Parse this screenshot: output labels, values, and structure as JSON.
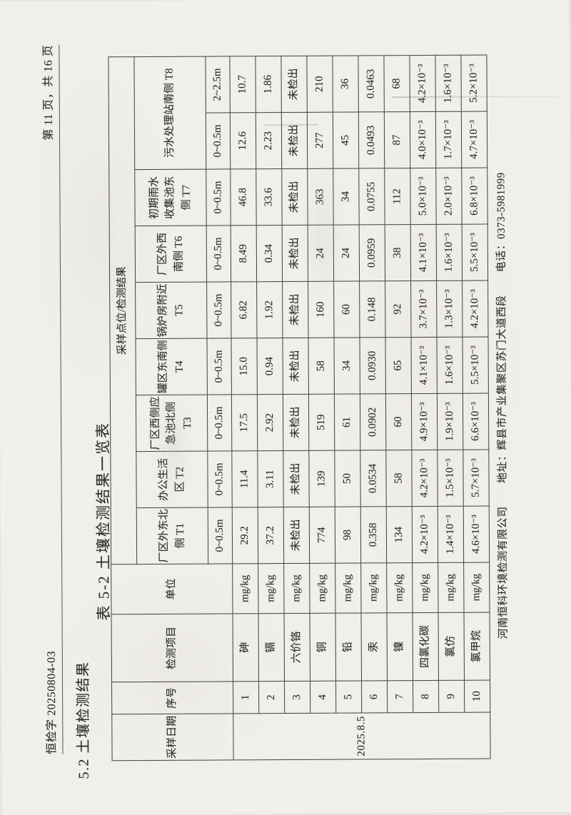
{
  "colors": {
    "paper": "#f1efea",
    "ink": "#2e2d2b",
    "line": "#41403d"
  },
  "page_header": {
    "left": "恒检字 20250804-03",
    "right": "第 11 页，共 16 页"
  },
  "section_heading": "5.2 土壤检测结果",
  "table_title": "表 5-2  土壤检测结果一览表",
  "table": {
    "left_headers": [
      "采样日期",
      "序号",
      "检测项目",
      "单位"
    ],
    "span_header": "采样点位/检测结果",
    "points": [
      {
        "label": "厂区外东北\n侧 T1",
        "cols": 1,
        "depths": [
          "0~0.5m"
        ]
      },
      {
        "label": "办公生活\n区 T2",
        "cols": 1,
        "depths": [
          "0~0.5m"
        ]
      },
      {
        "label": "厂区西侧应\n急池北侧\nT3",
        "cols": 1,
        "depths": [
          "0~0.5m"
        ]
      },
      {
        "label": "罐区东南侧\nT4",
        "cols": 1,
        "depths": [
          "0~0.5m"
        ]
      },
      {
        "label": "锅炉房附近\nT5",
        "cols": 1,
        "depths": [
          "0~0.5m"
        ]
      },
      {
        "label": "厂区外西\n南侧 T6",
        "cols": 1,
        "depths": [
          "0~0.5m"
        ]
      },
      {
        "label": "初期雨水\n收集池东\n侧 T7",
        "cols": 1,
        "depths": [
          "0~0.5m"
        ]
      },
      {
        "label": "污水处理站南侧 T8",
        "cols": 2,
        "depths": [
          "0~0.5m",
          "2~2.5m"
        ]
      }
    ],
    "sample_date": "2025.8.5",
    "rows": [
      {
        "no": "1",
        "item": "砷",
        "unit": "mg/kg",
        "values": [
          "29.2",
          "11.4",
          "17.5",
          "15.0",
          "6.82",
          "8.49",
          "46.8",
          "12.6",
          "10.7"
        ]
      },
      {
        "no": "2",
        "item": "镉",
        "unit": "mg/kg",
        "values": [
          "37.2",
          "3.11",
          "2.92",
          "0.94",
          "1.92",
          "0.34",
          "33.6",
          "2.23",
          "1.86"
        ]
      },
      {
        "no": "3",
        "item": "六价铬",
        "unit": "mg/kg",
        "values": [
          "未检出",
          "未检出",
          "未检出",
          "未检出",
          "未检出",
          "未检出",
          "未检出",
          "未检出",
          "未检出"
        ]
      },
      {
        "no": "4",
        "item": "铜",
        "unit": "mg/kg",
        "values": [
          "774",
          "139",
          "519",
          "58",
          "160",
          "24",
          "363",
          "277",
          "210"
        ]
      },
      {
        "no": "5",
        "item": "铅",
        "unit": "mg/kg",
        "values": [
          "98",
          "50",
          "61",
          "34",
          "60",
          "24",
          "34",
          "45",
          "36"
        ]
      },
      {
        "no": "6",
        "item": "汞",
        "unit": "mg/kg",
        "values": [
          "0.358",
          "0.0534",
          "0.0902",
          "0.0930",
          "0.148",
          "0.0959",
          "0.0755",
          "0.0493",
          "0.0463"
        ]
      },
      {
        "no": "7",
        "item": "镍",
        "unit": "mg/kg",
        "values": [
          "134",
          "58",
          "60",
          "65",
          "92",
          "38",
          "112",
          "87",
          "68"
        ]
      },
      {
        "no": "8",
        "item": "四氯化碳",
        "unit": "mg/kg",
        "values": [
          "4.2×10⁻³",
          "4.2×10⁻³",
          "4.9×10⁻³",
          "4.1×10⁻³",
          "3.7×10⁻³",
          "4.1×10⁻³",
          "5.0×10⁻³",
          "4.0×10⁻³",
          "4.2×10⁻³"
        ]
      },
      {
        "no": "9",
        "item": "氯仿",
        "unit": "mg/kg",
        "values": [
          "1.4×10⁻³",
          "1.5×10⁻³",
          "1.9×10⁻³",
          "1.6×10⁻³",
          "1.3×10⁻³",
          "1.6×10⁻³",
          "2.0×10⁻³",
          "1.7×10⁻³",
          "1.6×10⁻³"
        ]
      },
      {
        "no": "10",
        "item": "氯甲烷",
        "unit": "mg/kg",
        "values": [
          "4.6×10⁻³",
          "5.7×10⁻³",
          "6.6×10⁻³",
          "5.5×10⁻³",
          "4.2×10⁻³",
          "5.5×10⁻³",
          "6.8×10⁻³",
          "4.7×10⁻³",
          "5.2×10⁻³"
        ]
      }
    ]
  },
  "footer": {
    "company": "河南恒科环境检测有限公司",
    "address": "地址：辉县市产业集聚区苏门大道西段",
    "phone": "电话：0373-5981999"
  }
}
